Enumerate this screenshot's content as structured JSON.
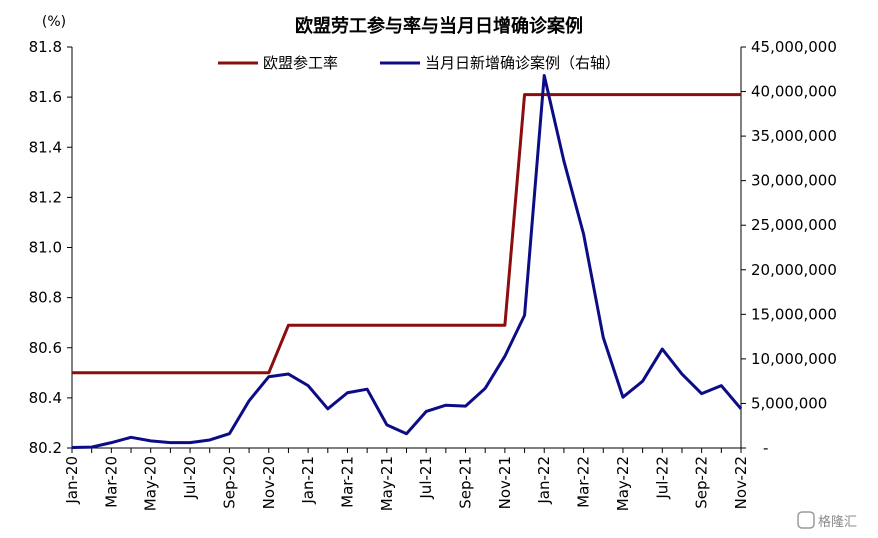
{
  "chart_data": {
    "type": "line",
    "title": "欧盟劳工参与率与当月日增确诊案例",
    "left_unit": "(%)",
    "categories": [
      "Jan-20",
      "Feb-20",
      "Mar-20",
      "Apr-20",
      "May-20",
      "Jun-20",
      "Jul-20",
      "Aug-20",
      "Sep-20",
      "Oct-20",
      "Nov-20",
      "Dec-20",
      "Jan-21",
      "Feb-21",
      "Mar-21",
      "Apr-21",
      "May-21",
      "Jun-21",
      "Jul-21",
      "Aug-21",
      "Sep-21",
      "Oct-21",
      "Nov-21",
      "Dec-21",
      "Jan-22",
      "Feb-22",
      "Mar-22",
      "Apr-22",
      "May-22",
      "Jun-22",
      "Jul-22",
      "Aug-22",
      "Sep-22",
      "Oct-22",
      "Nov-22"
    ],
    "xtick_labels": [
      "Jan-20",
      "Mar-20",
      "May-20",
      "Jul-20",
      "Sep-20",
      "Nov-20",
      "Jan-21",
      "Mar-21",
      "May-21",
      "Jul-21",
      "Sep-21",
      "Nov-21",
      "Jan-22",
      "Mar-22",
      "May-22",
      "Jul-22",
      "Sep-22",
      "Nov-22"
    ],
    "y_left": {
      "ylim": [
        80.2,
        81.8
      ],
      "ticks": [
        "80.2",
        "80.4",
        "80.6",
        "80.8",
        "81.0",
        "81.2",
        "81.4",
        "81.6",
        "81.8"
      ]
    },
    "y_right": {
      "ylim": [
        0,
        45000000
      ],
      "ticks": [
        "-",
        "5,000,000",
        "10,000,000",
        "15,000,000",
        "20,000,000",
        "25,000,000",
        "30,000,000",
        "35,000,000",
        "40,000,000",
        "45,000,000"
      ]
    },
    "series": [
      {
        "name": "欧盟参工率",
        "axis": "left",
        "color": "#8b0d0d",
        "values": [
          80.5,
          80.5,
          80.5,
          80.5,
          80.5,
          80.5,
          80.5,
          80.5,
          80.5,
          80.5,
          80.5,
          80.69,
          80.69,
          80.69,
          80.69,
          80.69,
          80.69,
          80.69,
          80.69,
          80.69,
          80.69,
          80.69,
          80.69,
          81.61,
          81.61,
          81.61,
          81.61,
          81.61,
          81.61,
          81.61,
          81.61,
          81.61,
          81.61,
          81.61,
          81.61
        ]
      },
      {
        "name": "当月日新增确诊案例（右轴）",
        "axis": "right",
        "color": "#0c0c86",
        "values": [
          50000,
          100000,
          600000,
          1200000,
          800000,
          600000,
          600000,
          900000,
          1600000,
          5300000,
          8000000,
          8300000,
          7000000,
          4400000,
          6200000,
          6600000,
          2600000,
          1600000,
          4100000,
          4800000,
          4700000,
          6700000,
          10300000,
          14900000,
          41800000,
          32200000,
          24000000,
          12400000,
          5700000,
          7500000,
          11100000,
          8300000,
          6100000,
          7000000,
          4400000
        ]
      }
    ]
  },
  "watermark": "格隆汇"
}
